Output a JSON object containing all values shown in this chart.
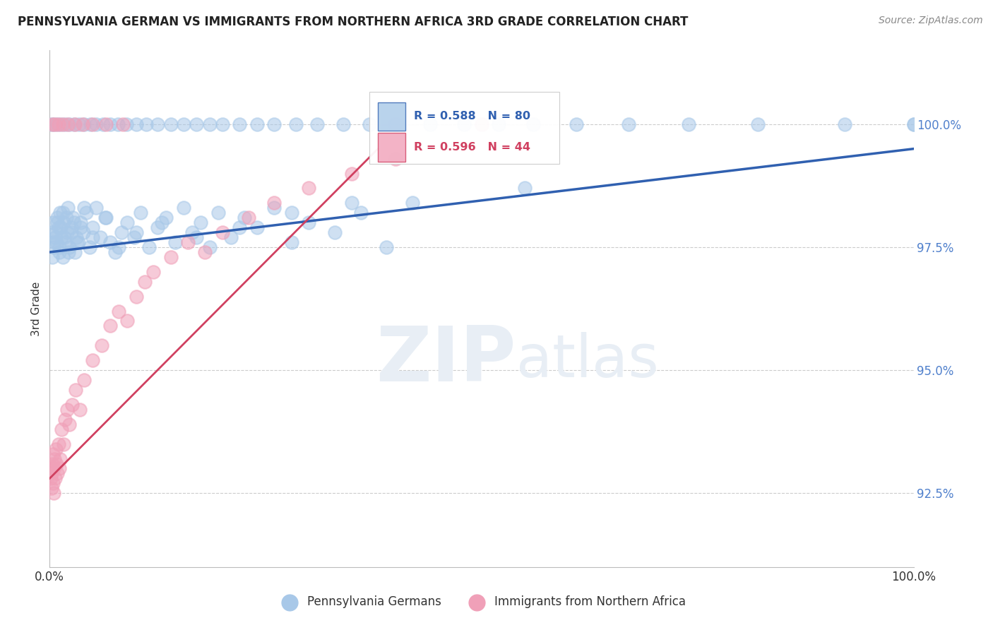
{
  "title": "PENNSYLVANIA GERMAN VS IMMIGRANTS FROM NORTHERN AFRICA 3RD GRADE CORRELATION CHART",
  "source": "Source: ZipAtlas.com",
  "ylabel": "3rd Grade",
  "ylabel_ticks": [
    92.5,
    95.0,
    97.5,
    100.0
  ],
  "xlim": [
    0.0,
    100.0
  ],
  "ylim": [
    91.0,
    101.5
  ],
  "blue_label": "Pennsylvania Germans",
  "pink_label": "Immigrants from Northern Africa",
  "blue_R": 0.588,
  "blue_N": 80,
  "pink_R": 0.596,
  "pink_N": 44,
  "blue_color": "#A8C8E8",
  "pink_color": "#F0A0B8",
  "blue_line_color": "#3060B0",
  "pink_line_color": "#D04060",
  "watermark_color": "#E8EEF5",
  "blue_x": [
    0.2,
    0.4,
    0.5,
    0.6,
    0.8,
    0.9,
    1.0,
    1.1,
    1.2,
    1.4,
    1.5,
    1.6,
    1.8,
    2.0,
    2.1,
    2.3,
    2.5,
    2.7,
    2.9,
    3.1,
    3.3,
    3.6,
    3.9,
    4.2,
    4.6,
    5.0,
    5.4,
    5.9,
    6.4,
    7.0,
    7.6,
    8.3,
    9.0,
    9.8,
    10.5,
    11.5,
    12.5,
    13.5,
    14.5,
    15.5,
    16.5,
    17.5,
    18.5,
    19.5,
    21.0,
    22.5,
    24.0,
    26.0,
    28.0,
    30.0,
    33.0,
    36.0,
    39.0,
    42.0,
    0.3,
    0.5,
    0.7,
    0.9,
    1.1,
    1.3,
    1.5,
    1.7,
    1.9,
    2.2,
    2.5,
    2.8,
    3.2,
    3.6,
    4.0,
    5.0,
    6.5,
    8.0,
    10.0,
    13.0,
    17.0,
    22.0,
    28.0,
    35.0,
    55.0,
    100.0
  ],
  "blue_y": [
    97.8,
    98.0,
    97.5,
    97.7,
    97.6,
    98.1,
    97.9,
    97.4,
    98.2,
    97.7,
    97.3,
    98.0,
    97.6,
    97.8,
    98.3,
    97.5,
    97.9,
    98.1,
    97.4,
    97.7,
    97.6,
    98.0,
    97.8,
    98.2,
    97.5,
    97.9,
    98.3,
    97.7,
    98.1,
    97.6,
    97.4,
    97.8,
    98.0,
    97.7,
    98.2,
    97.5,
    97.9,
    98.1,
    97.6,
    98.3,
    97.8,
    98.0,
    97.5,
    98.2,
    97.7,
    98.1,
    97.9,
    98.3,
    97.6,
    98.0,
    97.8,
    98.2,
    97.5,
    98.4,
    97.3,
    97.6,
    97.8,
    98.0,
    97.5,
    97.9,
    98.2,
    97.7,
    98.1,
    97.4,
    97.8,
    98.0,
    97.6,
    97.9,
    98.3,
    97.7,
    98.1,
    97.5,
    97.8,
    98.0,
    97.7,
    97.9,
    98.2,
    98.4,
    98.7,
    100.0
  ],
  "pink_x": [
    0.1,
    0.15,
    0.2,
    0.25,
    0.3,
    0.35,
    0.4,
    0.45,
    0.5,
    0.55,
    0.6,
    0.7,
    0.8,
    0.9,
    1.0,
    1.1,
    1.2,
    1.4,
    1.6,
    1.8,
    2.0,
    2.3,
    2.6,
    3.0,
    3.5,
    4.0,
    5.0,
    6.0,
    7.0,
    8.0,
    9.0,
    10.0,
    11.0,
    12.0,
    14.0,
    16.0,
    18.0,
    20.0,
    23.0,
    26.0,
    30.0,
    35.0,
    40.0,
    50.0
  ],
  "pink_y": [
    92.8,
    93.0,
    92.6,
    92.9,
    93.1,
    92.7,
    93.3,
    92.5,
    93.0,
    93.2,
    92.8,
    93.4,
    93.1,
    92.9,
    93.5,
    93.0,
    93.2,
    93.8,
    93.5,
    94.0,
    94.2,
    93.9,
    94.3,
    94.6,
    94.2,
    94.8,
    95.2,
    95.5,
    95.9,
    96.2,
    96.0,
    96.5,
    96.8,
    97.0,
    97.3,
    97.6,
    97.4,
    97.8,
    98.1,
    98.4,
    98.7,
    99.0,
    99.3,
    100.0
  ]
}
